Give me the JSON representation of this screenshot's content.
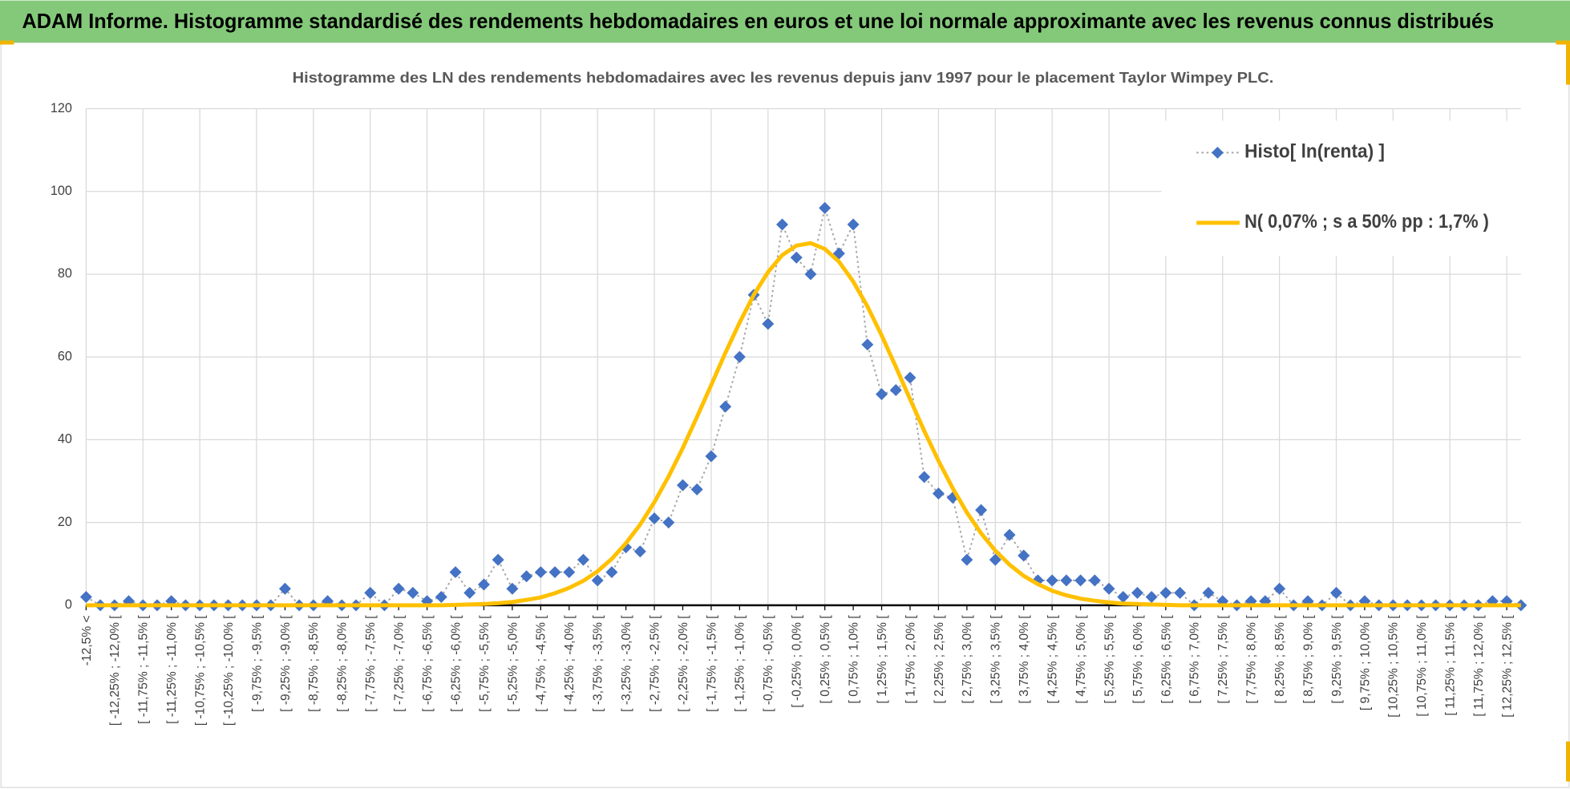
{
  "page_title": "ADAM Informe. Histogramme standardisé des rendements hebdomadaires en euros et une loi normale approximante avec les revenus connus distribués",
  "chart_data": {
    "type": "line",
    "title": "Histogramme  des LN des rendements  hebdomadaires avec les revenus depuis janv 1997 pour le placement Taylor Wimpey PLC.",
    "categories": [
      "-12,5% <",
      null,
      "[ -12,25% ; -12,0% [",
      null,
      "[ -11,75% ; -11,5% [",
      null,
      "[ -11,25% ; -11,0% [",
      null,
      "[ -10,75% ; -10,5% [",
      null,
      "[ -10,25% ; -10,0% [",
      null,
      "[ -9,75% ; -9,5% [",
      null,
      "[ -9,25% ; -9,0% [",
      null,
      "[ -8,75% ; -8,5% [",
      null,
      "[ -8,25% ; -8,0% [",
      null,
      "[ -7,75% ; -7,5% [",
      null,
      "[ -7,25% ; -7,0% [",
      null,
      "[ -6,75% ; -6,5% [",
      null,
      "[ -6,25% ; -6,0% [",
      null,
      "[ -5,75% ; -5,5% [",
      null,
      "[ -5,25% ; -5,0% [",
      null,
      "[ -4,75% ; -4,5% [",
      null,
      "[ -4,25% ; -4,0% [",
      null,
      "[ -3,75% ; -3,5% [",
      null,
      "[ -3,25% ; -3,0% [",
      null,
      "[ -2,75% ; -2,5% [",
      null,
      "[ -2,25% ; -2,0% [",
      null,
      "[ -1,75% ; -1,5% [",
      null,
      "[ -1,25% ; -1,0% [",
      null,
      "[ -0,75% ; -0,5% [",
      null,
      "[ -0,25% ; 0,0% [",
      null,
      "[ 0,25% ; 0,5% [",
      null,
      "[ 0,75% ; 1,0% [",
      null,
      "[ 1,25% ; 1,5% [",
      null,
      "[ 1,75% ; 2,0% [",
      null,
      "[ 2,25% ; 2,5% [",
      null,
      "[ 2,75% ; 3,0% [",
      null,
      "[ 3,25% ; 3,5% [",
      null,
      "[ 3,75% ; 4,0% [",
      null,
      "[ 4,25% ; 4,5% [",
      null,
      "[ 4,75% ; 5,0% [",
      null,
      "[ 5,25% ; 5,5% [",
      null,
      "[ 5,75% ; 6,0% [",
      null,
      "[ 6,25% ; 6,5% [",
      null,
      "[ 6,75% ; 7,0% [",
      null,
      "[ 7,25% ; 7,5% [",
      null,
      "[ 7,75% ; 8,0% [",
      null,
      "[ 8,25% ; 8,5% [",
      null,
      "[ 8,75% ; 9,0% [",
      null,
      "[ 9,25% ; 9,5% [",
      null,
      "[ 9,75% ; 10,0% [",
      null,
      "[ 10,25% ; 10,5% [",
      null,
      "[ 10,75% ; 11,0% [",
      null,
      "[ 11,25% ; 11,5% [",
      null,
      "[ 11,75% ; 12,0% [",
      null,
      "[ 12,25% ; 12,5% [",
      null
    ],
    "series": [
      {
        "name": "Histo[ ln(renta) ]",
        "color": "#4472c4",
        "line_color": "#a6a6a6",
        "values": [
          2,
          0,
          0,
          1,
          0,
          0,
          1,
          0,
          0,
          0,
          0,
          0,
          0,
          0,
          4,
          0,
          0,
          1,
          0,
          0,
          3,
          0,
          4,
          3,
          1,
          2,
          8,
          3,
          5,
          11,
          4,
          7,
          8,
          8,
          8,
          11,
          6,
          8,
          14,
          13,
          21,
          20,
          29,
          28,
          36,
          48,
          60,
          75,
          68,
          92,
          84,
          80,
          96,
          85,
          92,
          63,
          51,
          52,
          55,
          31,
          27,
          26,
          11,
          23,
          11,
          17,
          12,
          6,
          6,
          6,
          6,
          6,
          4,
          2,
          3,
          2,
          3,
          3,
          0,
          3,
          1,
          0,
          1,
          1,
          4,
          0,
          1,
          0,
          3,
          0,
          1,
          0,
          0,
          0,
          0,
          0,
          0,
          0,
          0,
          1,
          1,
          0
        ]
      },
      {
        "name": "N( 0,07% ; s a 50% pp : 1,7% )",
        "color": "#ffc000",
        "values": [
          0,
          0,
          0,
          0,
          0,
          0,
          0,
          0,
          0,
          0,
          0,
          0,
          0,
          0,
          0,
          0,
          0,
          0,
          0,
          0,
          0,
          0,
          0,
          0,
          0,
          0,
          0.1,
          0.2,
          0.3,
          0.5,
          0.8,
          1.3,
          1.9,
          2.9,
          4.2,
          5.9,
          8.2,
          11.2,
          15.0,
          19.5,
          24.9,
          31.1,
          38.0,
          45.5,
          53.2,
          61.0,
          68.3,
          75.0,
          80.5,
          84.6,
          86.9,
          87.5,
          86.1,
          83.0,
          78.2,
          72.2,
          65.2,
          57.6,
          49.8,
          42.1,
          34.9,
          28.3,
          22.4,
          17.4,
          13.2,
          9.8,
          7.1,
          5.1,
          3.5,
          2.4,
          1.6,
          1.1,
          0.7,
          0.4,
          0.3,
          0.2,
          0.1,
          0,
          0,
          0,
          0,
          0,
          0,
          0,
          0,
          0,
          0,
          0,
          0,
          0,
          0,
          0,
          0,
          0,
          0,
          0,
          0,
          0,
          0,
          0,
          0,
          0
        ]
      }
    ],
    "ylim": [
      0,
      120
    ],
    "yticks": [
      0,
      20,
      40,
      60,
      80,
      100,
      120
    ],
    "grid": true,
    "legend": "top-right"
  }
}
